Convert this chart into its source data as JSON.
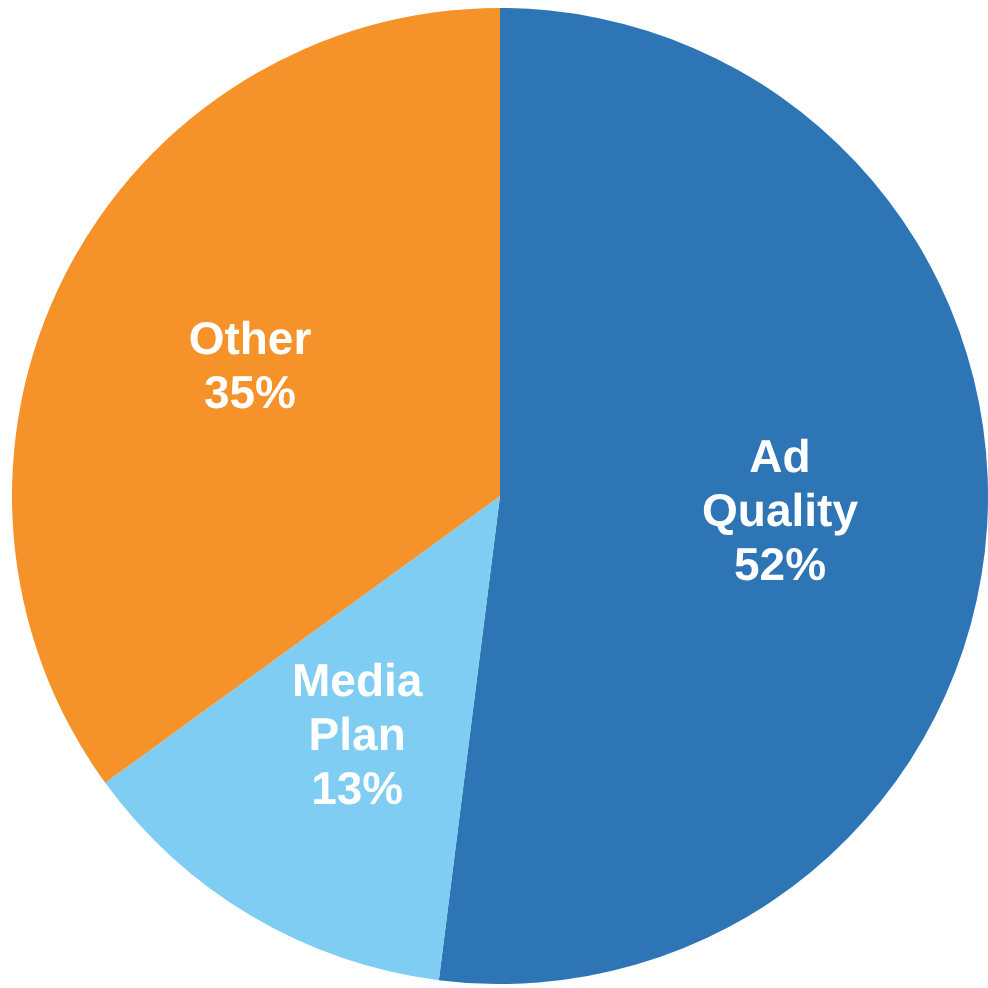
{
  "chart_data": {
    "type": "pie",
    "categories": [
      "Ad Quality",
      "Media Plan",
      "Other"
    ],
    "values": [
      52,
      13,
      35
    ],
    "colors": [
      "#2e75b6",
      "#7fcdf2",
      "#f5922a"
    ],
    "value_labels": [
      "52%",
      "13%",
      "35%"
    ]
  }
}
